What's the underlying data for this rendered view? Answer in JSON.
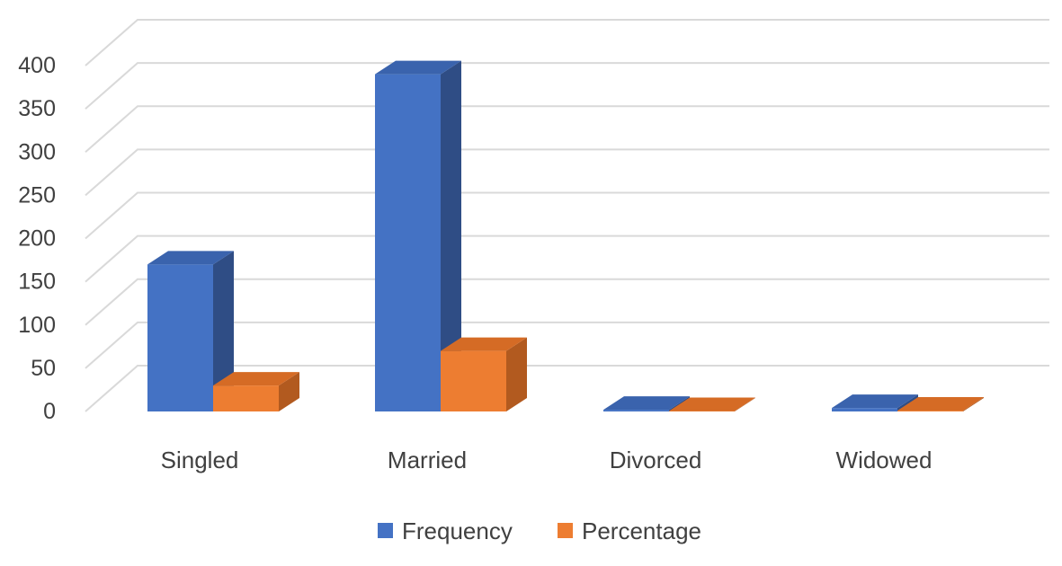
{
  "chart_data": {
    "type": "bar",
    "title": "",
    "xlabel": "",
    "ylabel": "",
    "categories": [
      "Singled",
      "Married",
      "Divorced",
      "Widowed"
    ],
    "series": [
      {
        "name": "Frequency",
        "values": [
          170,
          390,
          2,
          4
        ]
      },
      {
        "name": "Percentage",
        "values": [
          30,
          70,
          0.5,
          1
        ]
      }
    ],
    "ylim": [
      0,
      400
    ],
    "yticks": [
      "0",
      "50",
      "100",
      "150",
      "200",
      "250",
      "300",
      "350",
      "400"
    ],
    "grid": true,
    "legend_position": "bottom",
    "three_d": true,
    "colors": {
      "Frequency": {
        "front": "#4472c4",
        "side": "#2f4d85",
        "top": "#3a63ad"
      },
      "Percentage": {
        "front": "#ed7d31",
        "side": "#b25a1f",
        "top": "#d56b25"
      },
      "grid": "#d9d9d9",
      "text": "#404040"
    }
  }
}
